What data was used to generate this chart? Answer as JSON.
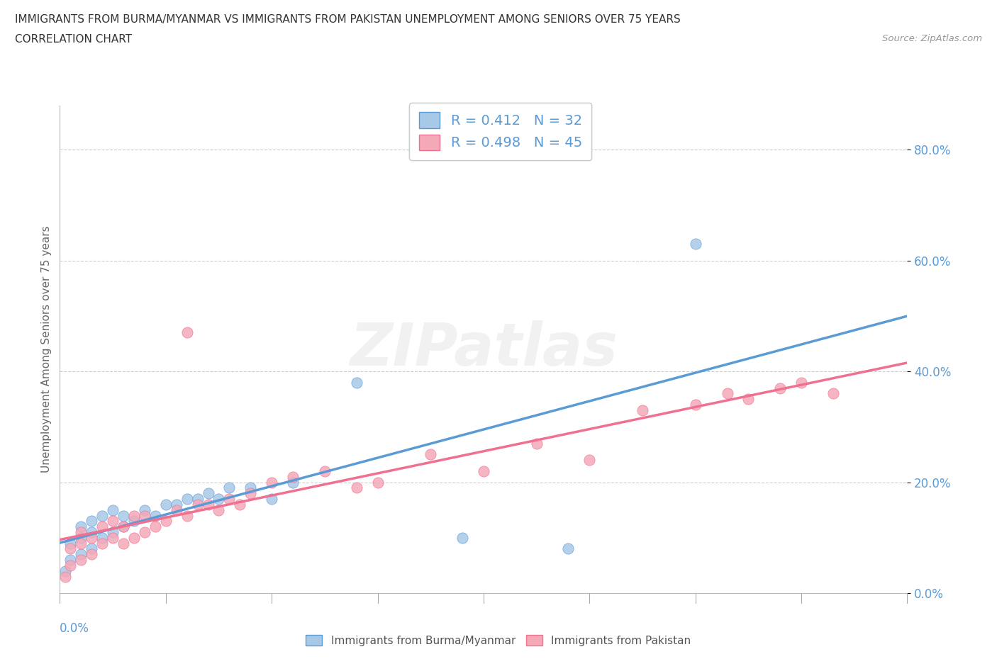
{
  "title_line1": "IMMIGRANTS FROM BURMA/MYANMAR VS IMMIGRANTS FROM PAKISTAN UNEMPLOYMENT AMONG SENIORS OVER 75 YEARS",
  "title_line2": "CORRELATION CHART",
  "source_text": "Source: ZipAtlas.com",
  "ylabel": "Unemployment Among Seniors over 75 years",
  "watermark": "ZIPatlas",
  "legend_label1": "Immigrants from Burma/Myanmar",
  "legend_label2": "Immigrants from Pakistan",
  "R1": 0.412,
  "N1": 32,
  "R2": 0.498,
  "N2": 45,
  "color_burma": "#a8c8e8",
  "color_pakistan": "#f4a8b8",
  "color_burma_line": "#5b9bd5",
  "color_pakistan_line": "#f07090",
  "xlim": [
    0.0,
    0.08
  ],
  "ylim": [
    0.0,
    0.88
  ],
  "yticks": [
    0.0,
    0.2,
    0.4,
    0.6,
    0.8
  ],
  "ytick_labels": [
    "0.0%",
    "20.0%",
    "40.0%",
    "60.0%",
    "80.0%"
  ],
  "burma_x": [
    0.0005,
    0.001,
    0.001,
    0.002,
    0.002,
    0.002,
    0.003,
    0.003,
    0.003,
    0.004,
    0.004,
    0.005,
    0.005,
    0.006,
    0.006,
    0.007,
    0.008,
    0.009,
    0.01,
    0.011,
    0.012,
    0.013,
    0.014,
    0.015,
    0.016,
    0.018,
    0.02,
    0.022,
    0.028,
    0.038,
    0.048,
    0.06
  ],
  "burma_y": [
    0.04,
    0.06,
    0.09,
    0.07,
    0.1,
    0.12,
    0.08,
    0.11,
    0.13,
    0.1,
    0.14,
    0.11,
    0.15,
    0.12,
    0.14,
    0.13,
    0.15,
    0.14,
    0.16,
    0.16,
    0.17,
    0.17,
    0.18,
    0.17,
    0.19,
    0.19,
    0.17,
    0.2,
    0.38,
    0.1,
    0.08,
    0.63
  ],
  "pakistan_x": [
    0.0005,
    0.001,
    0.001,
    0.002,
    0.002,
    0.002,
    0.003,
    0.003,
    0.004,
    0.004,
    0.005,
    0.005,
    0.006,
    0.006,
    0.007,
    0.007,
    0.008,
    0.008,
    0.009,
    0.01,
    0.011,
    0.012,
    0.012,
    0.013,
    0.014,
    0.015,
    0.016,
    0.017,
    0.018,
    0.02,
    0.022,
    0.025,
    0.028,
    0.03,
    0.035,
    0.04,
    0.045,
    0.05,
    0.055,
    0.06,
    0.063,
    0.065,
    0.068,
    0.07,
    0.073
  ],
  "pakistan_y": [
    0.03,
    0.05,
    0.08,
    0.06,
    0.09,
    0.11,
    0.07,
    0.1,
    0.09,
    0.12,
    0.1,
    0.13,
    0.09,
    0.12,
    0.1,
    0.14,
    0.11,
    0.14,
    0.12,
    0.13,
    0.15,
    0.14,
    0.47,
    0.16,
    0.16,
    0.15,
    0.17,
    0.16,
    0.18,
    0.2,
    0.21,
    0.22,
    0.19,
    0.2,
    0.25,
    0.22,
    0.27,
    0.24,
    0.33,
    0.34,
    0.36,
    0.35,
    0.37,
    0.38,
    0.36
  ]
}
